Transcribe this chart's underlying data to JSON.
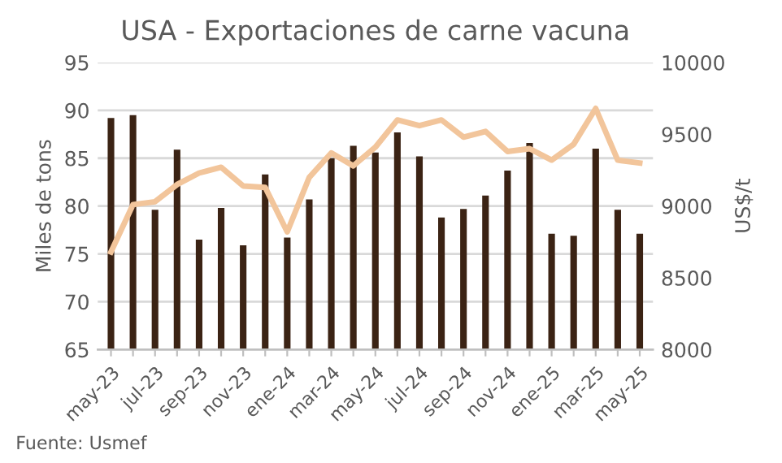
{
  "chart_data": {
    "type": "bar",
    "title": "USA - Exportaciones de carne vacuna",
    "ylabel": "Miles de tons",
    "y2label": "US$/t",
    "categories": [
      "may-23",
      null,
      "jul-23",
      null,
      "sep-23",
      null,
      "nov-23",
      null,
      "ene-24",
      null,
      "mar-24",
      null,
      "may-24",
      null,
      "jul-24",
      null,
      "sep-24",
      null,
      "nov-24",
      null,
      "ene-25",
      null,
      "mar-25",
      null,
      "may-25"
    ],
    "series": [
      {
        "color": "#3b2314",
        "values": [
          89.2,
          89.5,
          79.6,
          85.9,
          76.5,
          79.8,
          75.9,
          83.3,
          76.7,
          80.7,
          85.0,
          86.3,
          85.6,
          87.7,
          85.2,
          78.8,
          79.7,
          81.1,
          83.7,
          86.6,
          77.1,
          76.9,
          86.0,
          79.6,
          77.1
        ]
      },
      {
        "type": "line",
        "axis": "y2",
        "color": "#f2c59b",
        "values": [
          8680,
          9010,
          9030,
          9150,
          9230,
          9270,
          9140,
          9130,
          8820,
          9200,
          9370,
          9280,
          9410,
          9600,
          9560,
          9600,
          9480,
          9520,
          9380,
          9400,
          9320,
          9430,
          9680,
          9320,
          9300
        ]
      }
    ],
    "ylim": [
      65,
      95
    ],
    "yticks": [
      65,
      70,
      75,
      80,
      85,
      90,
      95
    ],
    "y2lim": [
      8000,
      10000
    ],
    "y2ticks": [
      8000,
      8500,
      9000,
      9500,
      10000
    ],
    "grid": "y",
    "legend": false,
    "marker": "none",
    "line_style": "solid",
    "annotations": [
      "Fuente: Usmef"
    ]
  }
}
